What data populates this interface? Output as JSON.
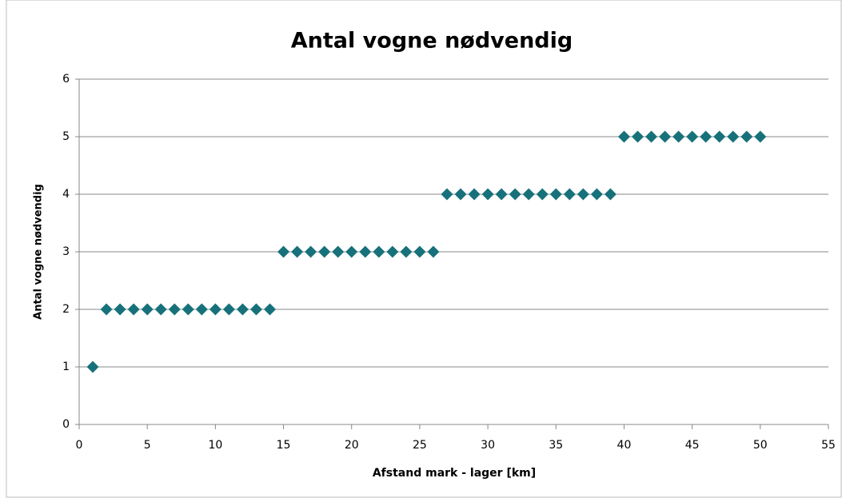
{
  "chart_data": {
    "type": "scatter",
    "title": "Antal vogne nødvendig",
    "x_label": "Afstand mark - lager [km]",
    "y_label": "Antal vogne nødvendig",
    "series": [
      {
        "name": "Antal vogne nødvendig",
        "color": "#17717a",
        "x": [
          1,
          2,
          3,
          4,
          5,
          6,
          7,
          8,
          9,
          10,
          11,
          12,
          13,
          14,
          15,
          16,
          17,
          18,
          19,
          20,
          21,
          22,
          23,
          24,
          25,
          26,
          27,
          28,
          29,
          30,
          31,
          32,
          33,
          34,
          35,
          36,
          37,
          38,
          39,
          40,
          41,
          42,
          43,
          44,
          45,
          46,
          47,
          48,
          49,
          50
        ],
        "values": [
          1,
          2,
          2,
          2,
          2,
          2,
          2,
          2,
          2,
          2,
          2,
          2,
          2,
          2,
          3,
          3,
          3,
          3,
          3,
          3,
          3,
          3,
          3,
          3,
          3,
          3,
          4,
          4,
          4,
          4,
          4,
          4,
          4,
          4,
          4,
          4,
          4,
          4,
          4,
          5,
          5,
          5,
          5,
          5,
          5,
          5,
          5,
          5,
          5,
          5
        ]
      }
    ],
    "xlim": [
      0,
      55
    ],
    "xticks": [
      0,
      5,
      10,
      15,
      20,
      25,
      30,
      35,
      40,
      45,
      50,
      55
    ],
    "ylim": [
      0,
      6
    ],
    "yticks": [
      0,
      1,
      2,
      3,
      4,
      5,
      6
    ],
    "grid": true
  }
}
